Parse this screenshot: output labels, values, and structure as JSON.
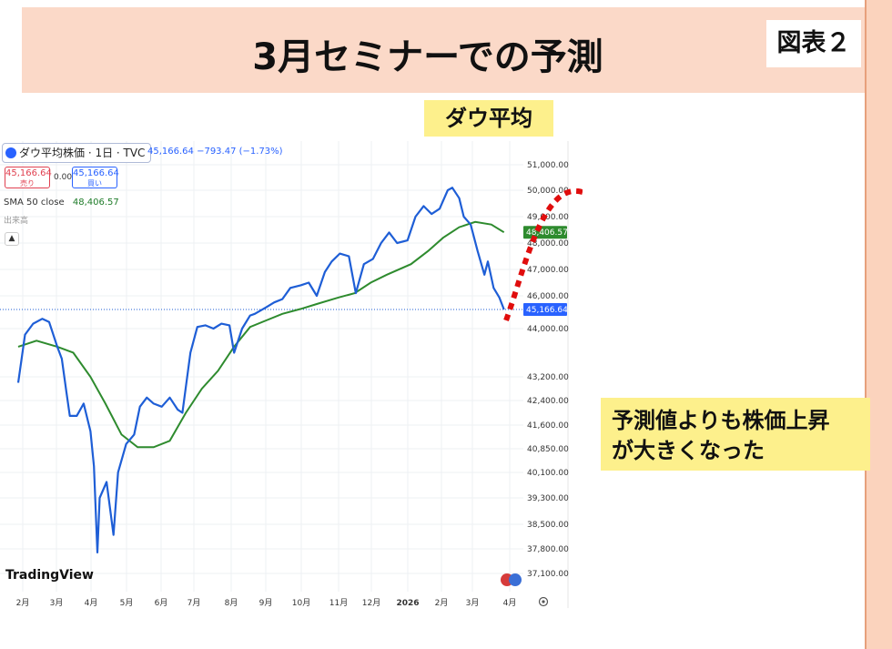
{
  "slide": {
    "title": "3月セミナーでの予測",
    "figure_label": "図表２",
    "subtitle": "ダウ平均",
    "annotation_line1": "予測値よりも株価上昇",
    "annotation_line2": "が大きくなった"
  },
  "widget": {
    "symbol": "ダウ平均株価 · 1日 · TVC",
    "last_info": "45,166.64 −793.47 (−1.73%)",
    "sell_price": "45,166.64",
    "sell_label": "売り",
    "buy_price": "45,166.64",
    "buy_label": "買い",
    "spread": "0.00",
    "sma_label": "SMA 50 close",
    "sma_value": "48,406.57",
    "volume_label": "出来高",
    "sma_tag": "48,406.57",
    "price_tag": "45,166.64",
    "logo_text": "TradingView"
  },
  "colors": {
    "price_line": "#1e5ed6",
    "sma_line": "#2e8b2e",
    "forecast": "#e00d0d",
    "price_tag_bg": "#2962ff",
    "sma_tag_bg": "#2e8b2e"
  },
  "chart_data": {
    "type": "line",
    "title": "",
    "xlabel": "",
    "ylabel": "",
    "x_tick_labels": [
      "2月",
      "3月",
      "4月",
      "5月",
      "6月",
      "7月",
      "8月",
      "9月",
      "10月",
      "11月",
      "12月",
      "2026",
      "2月",
      "3月",
      "4月"
    ],
    "y_tick_labels": [
      "51,000.00",
      "50,000.00",
      "49,000.00",
      "48,000.00",
      "47,000.00",
      "46,000.00",
      "44,000.00",
      "43,200.00",
      "42,400.00",
      "41,600.00",
      "40,850.00",
      "40,100.00",
      "39,300.00",
      "38,500.00",
      "37,800.00",
      "37,100.00"
    ],
    "ylim": [
      36900,
      51300
    ],
    "grid": true,
    "series": [
      {
        "name": "ダウ平均株価",
        "x": [
          "2025-01-28",
          "2025-02-03",
          "2025-02-10",
          "2025-02-18",
          "2025-02-24",
          "2025-03-03",
          "2025-03-07",
          "2025-03-11",
          "2025-03-14",
          "2025-03-20",
          "2025-03-26",
          "2025-04-01",
          "2025-04-04",
          "2025-04-07",
          "2025-04-09",
          "2025-04-15",
          "2025-04-21",
          "2025-04-25",
          "2025-05-02",
          "2025-05-09",
          "2025-05-14",
          "2025-05-20",
          "2025-05-26",
          "2025-06-02",
          "2025-06-09",
          "2025-06-16",
          "2025-06-20",
          "2025-06-27",
          "2025-07-03",
          "2025-07-10",
          "2025-07-17",
          "2025-07-24",
          "2025-07-31",
          "2025-08-04",
          "2025-08-11",
          "2025-08-18",
          "2025-08-22",
          "2025-09-01",
          "2025-09-08",
          "2025-09-15",
          "2025-09-22",
          "2025-10-01",
          "2025-10-08",
          "2025-10-15",
          "2025-10-22",
          "2025-10-28",
          "2025-11-04",
          "2025-11-12",
          "2025-11-18",
          "2025-11-25",
          "2025-12-03",
          "2025-12-10",
          "2025-12-17",
          "2025-12-24",
          "2026-01-02",
          "2026-01-09",
          "2026-01-16",
          "2026-01-23",
          "2026-01-30",
          "2026-02-06",
          "2026-02-10",
          "2026-02-16",
          "2026-02-20",
          "2026-02-26",
          "2026-03-04",
          "2026-03-10",
          "2026-03-13",
          "2026-03-18",
          "2026-03-23",
          "2026-03-27"
        ],
        "values": [
          43000,
          43900,
          44300,
          44600,
          44400,
          43700,
          43500,
          42700,
          41900,
          41900,
          42300,
          41400,
          40300,
          37700,
          39300,
          39800,
          38200,
          40100,
          41000,
          41300,
          42200,
          42500,
          42300,
          42200,
          42500,
          42100,
          42000,
          43600,
          44100,
          44200,
          44000,
          44300,
          44200,
          43600,
          44000,
          44800,
          44900,
          45300,
          45600,
          45800,
          46300,
          46400,
          46500,
          46000,
          46900,
          47300,
          47600,
          47500,
          46100,
          47200,
          47400,
          48000,
          48400,
          48000,
          48100,
          49000,
          49400,
          49100,
          49300,
          50000,
          50100,
          49700,
          49000,
          48700,
          47700,
          46800,
          47300,
          46300,
          45900,
          45166.64
        ]
      },
      {
        "name": "SMA 50 close",
        "x": [
          "2025-01-28",
          "2025-02-13",
          "2025-03-03",
          "2025-03-17",
          "2025-04-01",
          "2025-04-14",
          "2025-04-28",
          "2025-05-12",
          "2025-05-26",
          "2025-06-09",
          "2025-06-23",
          "2025-07-07",
          "2025-07-21",
          "2025-08-04",
          "2025-08-18",
          "2025-09-01",
          "2025-09-15",
          "2025-10-01",
          "2025-10-15",
          "2025-11-03",
          "2025-11-17",
          "2025-12-01",
          "2025-12-15",
          "2026-01-05",
          "2026-01-20",
          "2026-02-02",
          "2026-02-16",
          "2026-03-02",
          "2026-03-16",
          "2026-03-27"
        ],
        "values": [
          43700,
          43800,
          43700,
          43600,
          43200,
          42300,
          41300,
          40900,
          40900,
          41100,
          42000,
          42800,
          43300,
          43700,
          44100,
          44500,
          44900,
          45200,
          45500,
          45900,
          46100,
          46500,
          46800,
          47200,
          47700,
          48200,
          48600,
          48800,
          48700,
          48406.57
        ]
      }
    ]
  }
}
